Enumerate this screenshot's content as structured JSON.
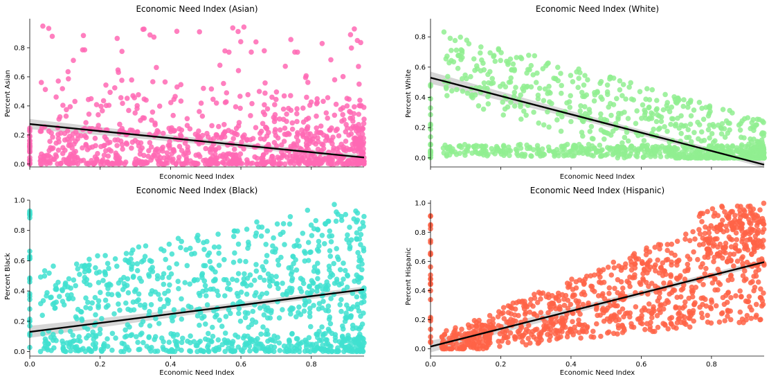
{
  "chart_data": [
    {
      "type": "scatter",
      "title": "Economic Need Index (Asian)",
      "xlabel": "Economic Need Index",
      "ylabel": "Percent Asian",
      "xlim": [
        0,
        0.95
      ],
      "ylim": [
        -0.02,
        1.0
      ],
      "xticks": [
        0,
        0.2,
        0.4,
        0.6,
        0.8
      ],
      "xtick_labels_visible": false,
      "yticks": [
        0.0,
        0.2,
        0.4,
        0.6,
        0.8
      ],
      "ytick_labels": [
        "0.0",
        "0.2",
        "0.4",
        "0.6",
        "0.8"
      ],
      "color": "#ff69b4",
      "regression": {
        "x": [
          0,
          0.95
        ],
        "y": [
          0.275,
          0.045
        ]
      },
      "ci_halfwidth": [
        0.035,
        0.015,
        0.018
      ],
      "seed": 11
    },
    {
      "type": "scatter",
      "title": "Economic Need Index (White)",
      "xlabel": "Economic Need Index",
      "ylabel": "Percent White",
      "xlim": [
        0,
        0.95
      ],
      "ylim": [
        -0.06,
        0.92
      ],
      "xticks": [
        0,
        0.2,
        0.4,
        0.6,
        0.8
      ],
      "xtick_labels_visible": false,
      "yticks": [
        0.0,
        0.2,
        0.4,
        0.6,
        0.8
      ],
      "ytick_labels": [
        "0.0",
        "0.2",
        "0.4",
        "0.6",
        "0.8"
      ],
      "color": "#90ee90",
      "regression": {
        "x": [
          0,
          0.95
        ],
        "y": [
          0.53,
          -0.045
        ]
      },
      "ci_halfwidth": [
        0.04,
        0.012,
        0.02
      ],
      "seed": 22
    },
    {
      "type": "scatter",
      "title": "Economic Need Index (Black)",
      "xlabel": "Economic Need Index",
      "ylabel": "Percent Black",
      "xlim": [
        0,
        0.95
      ],
      "ylim": [
        -0.03,
        1.0
      ],
      "xticks": [
        0,
        0.2,
        0.4,
        0.6,
        0.8
      ],
      "xtick_labels": [
        "0.0",
        "0.2",
        "0.4",
        "0.6",
        "0.8"
      ],
      "xtick_labels_visible": true,
      "yticks": [
        0.0,
        0.2,
        0.4,
        0.6,
        0.8,
        1.0
      ],
      "ytick_labels": [
        "0.0",
        "0.2",
        "0.4",
        "0.6",
        "0.8",
        "1.0"
      ],
      "color": "#40e0d0",
      "regression": {
        "x": [
          0,
          0.95
        ],
        "y": [
          0.13,
          0.41
        ]
      },
      "ci_halfwidth": [
        0.04,
        0.014,
        0.02
      ],
      "seed": 33
    },
    {
      "type": "scatter",
      "title": "Economic Need Index (Hispanic)",
      "xlabel": "Economic Need Index",
      "ylabel": "Percent Hispanic",
      "xlim": [
        0,
        0.95
      ],
      "ylim": [
        -0.05,
        1.02
      ],
      "xticks": [
        0,
        0.2,
        0.4,
        0.6,
        0.8
      ],
      "xtick_labels": [
        "0.0",
        "0.2",
        "0.4",
        "0.6",
        "0.8"
      ],
      "xtick_labels_visible": true,
      "yticks": [
        0.0,
        0.2,
        0.4,
        0.6,
        0.8,
        1.0
      ],
      "ytick_labels": [
        "0.0",
        "0.2",
        "0.4",
        "0.6",
        "0.8",
        "1.0"
      ],
      "color": "#ff6347",
      "regression": {
        "x": [
          0,
          0.95
        ],
        "y": [
          0.015,
          0.595
        ]
      },
      "ci_halfwidth": [
        0.04,
        0.012,
        0.02
      ],
      "seed": 44
    }
  ]
}
